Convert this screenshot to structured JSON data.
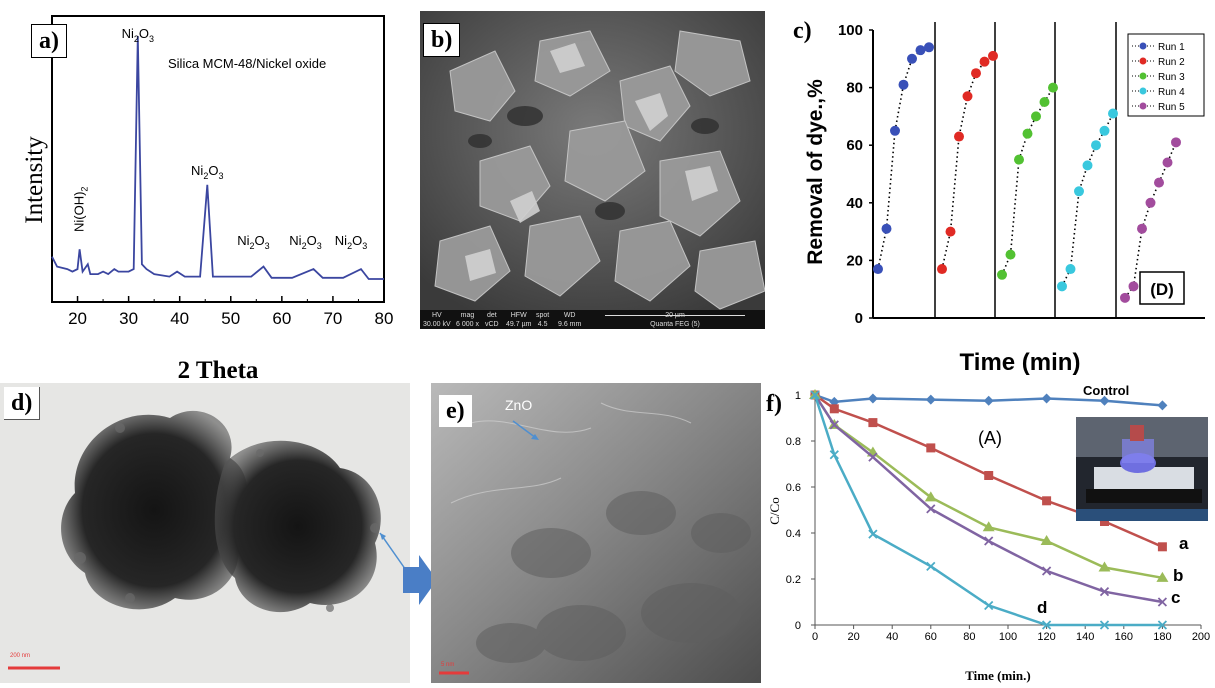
{
  "panels": {
    "a": "a)",
    "b": "b)",
    "c": "c)",
    "d": "d)",
    "e": "e)",
    "f": "f)"
  },
  "xrd": {
    "title": "Silica MCM-48/Nickel oxide",
    "xlabel": "2 Theta",
    "ylabel": "Intensity",
    "peaks": [
      {
        "label": "Ni(OH)",
        "sub": "2",
        "x": 20.4
      },
      {
        "label": "Ni",
        "sub": "2",
        "tail": "O",
        "sub2": "3",
        "x": 31.8
      },
      {
        "label": "Ni",
        "sub": "2",
        "tail": "O",
        "sub2": "3",
        "x": 45.4
      },
      {
        "label": "Ni",
        "sub": "2",
        "tail": "O",
        "sub2": "3",
        "x": 56.4
      },
      {
        "label": "Ni",
        "sub": "2",
        "tail": "O",
        "sub2": "3",
        "x": 66.2
      },
      {
        "label": "Ni",
        "sub": "2",
        "tail": "O",
        "sub2": "3",
        "x": 75.5
      }
    ],
    "color": "#3b46a0"
  },
  "sem": {
    "hv": "HV",
    "hv_val": "30.00 kV",
    "mag": "mag",
    "mag_val": "6 000 x",
    "det": "det",
    "det_val": "vCD",
    "hfw": "HFW",
    "hfw_val": "49.7 µm",
    "spot": "spot",
    "spot_val": "4.5",
    "wd": "WD",
    "wd_val": "9.6 mm",
    "scale": "20 µm",
    "instrument": "Quanta FEG (5)"
  },
  "tem_d": {
    "scale": "200 nm"
  },
  "tem_e": {
    "annotation": "ZnO",
    "scale": "5 nm"
  },
  "chart_data": [
    {
      "panel": "a",
      "type": "line",
      "title": "Silica MCM-48/Nickel oxide",
      "xlabel": "2 Theta",
      "ylabel": "Intensity",
      "xlim": [
        15,
        80
      ],
      "xticks": [
        20,
        30,
        40,
        50,
        60,
        70,
        80
      ],
      "x": [
        15,
        16,
        18,
        19,
        20,
        20.4,
        21,
        22,
        22.5,
        24,
        25,
        26,
        27.2,
        28,
        30,
        31,
        31.8,
        32.6,
        33.5,
        35,
        38,
        39.5,
        41,
        44,
        45.4,
        46.5,
        50,
        54,
        56.4,
        58,
        62,
        66.2,
        68,
        72,
        75.5,
        77,
        80
      ],
      "y": [
        11,
        7,
        6,
        5,
        6,
        14,
        5,
        8,
        4,
        4,
        5,
        4,
        6,
        5,
        5,
        6,
        100,
        8,
        6,
        4,
        3,
        5,
        3,
        3,
        40,
        3,
        3,
        3,
        7,
        2.5,
        2.5,
        6,
        2.5,
        2.5,
        6,
        2,
        2
      ]
    },
    {
      "panel": "c",
      "type": "scatter",
      "xlabel": "Time (min)",
      "ylabel": "Removal of dye.,%",
      "ylim": [
        0,
        100
      ],
      "yticks": [
        0,
        20,
        40,
        60,
        80,
        100
      ],
      "annotation": "(D)",
      "legend": "top-right",
      "series": [
        {
          "name": "Run 1",
          "color": "#3950b8",
          "values": [
            17,
            31,
            65,
            81,
            90,
            93,
            94
          ]
        },
        {
          "name": "Run 2",
          "color": "#e02a24",
          "values": [
            17,
            30,
            63,
            77,
            85,
            89,
            91
          ]
        },
        {
          "name": "Run 3",
          "color": "#52c132",
          "values": [
            15,
            22,
            55,
            64,
            70,
            75,
            80
          ]
        },
        {
          "name": "Run 4",
          "color": "#39c8de",
          "values": [
            11,
            17,
            44,
            53,
            60,
            65,
            71
          ]
        },
        {
          "name": "Run 5",
          "color": "#a24c9d",
          "values": [
            7,
            11,
            31,
            40,
            47,
            54,
            61
          ]
        }
      ]
    },
    {
      "panel": "f",
      "type": "line",
      "annotation": "(A)",
      "xlabel": "Time (min.)",
      "ylabel": "C/Co",
      "xlim": [
        0,
        200
      ],
      "ylim": [
        0,
        1
      ],
      "xticks": [
        0,
        20,
        40,
        60,
        80,
        100,
        120,
        140,
        160,
        180,
        200
      ],
      "yticks": [
        0,
        0.2,
        0.4,
        0.6,
        0.8,
        1
      ],
      "ytick_labels": [
        "0",
        "0.2",
        "0.4",
        "0.6",
        "0.8",
        "1"
      ],
      "series": [
        {
          "name": "Control",
          "color": "#4f81bd",
          "marker": "diamond",
          "x": [
            0,
            10,
            30,
            60,
            90,
            120,
            150,
            180
          ],
          "values": [
            1,
            0.97,
            0.985,
            0.98,
            0.975,
            0.985,
            0.975,
            0.955
          ]
        },
        {
          "name": "a",
          "color": "#c0504d",
          "marker": "square",
          "x": [
            0,
            10,
            30,
            60,
            90,
            120,
            150,
            180
          ],
          "values": [
            1,
            0.94,
            0.88,
            0.77,
            0.65,
            0.54,
            0.45,
            0.34
          ]
        },
        {
          "name": "b",
          "color": "#9bbb59",
          "marker": "triangle",
          "x": [
            0,
            10,
            30,
            60,
            90,
            120,
            150,
            180
          ],
          "values": [
            1,
            0.87,
            0.75,
            0.555,
            0.425,
            0.365,
            0.25,
            0.205
          ]
        },
        {
          "name": "c",
          "color": "#8064a2",
          "marker": "x",
          "x": [
            0,
            10,
            30,
            60,
            90,
            120,
            150,
            180
          ],
          "values": [
            1,
            0.87,
            0.73,
            0.505,
            0.365,
            0.235,
            0.145,
            0.1
          ]
        },
        {
          "name": "d",
          "color": "#4bacc6",
          "marker": "x",
          "x": [
            0,
            10,
            30,
            60,
            90,
            120,
            150,
            180
          ],
          "values": [
            1,
            0.74,
            0.395,
            0.255,
            0.085,
            0.0,
            0.0,
            0.0
          ]
        }
      ]
    }
  ]
}
